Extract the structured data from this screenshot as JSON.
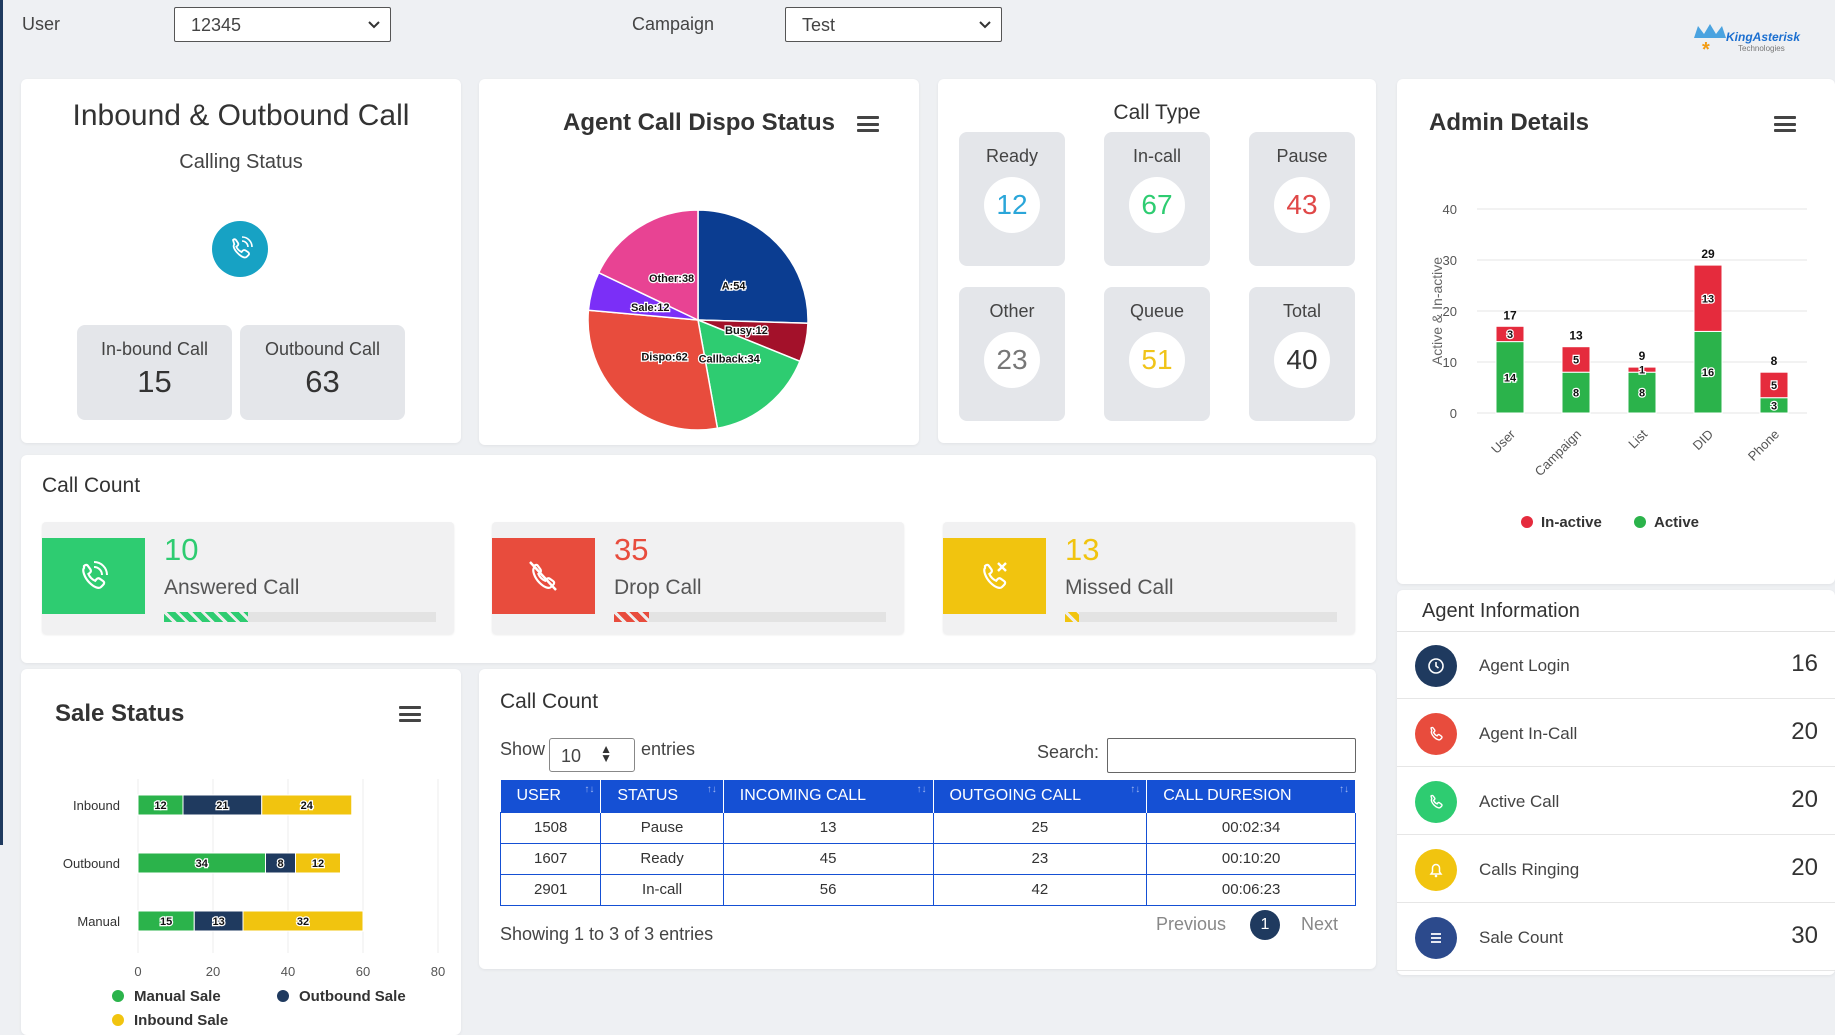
{
  "filters": {
    "user_label": "User",
    "user_value": "12345",
    "campaign_label": "Campaign",
    "campaign_value": "Test"
  },
  "logo": {
    "text": "KingAsterisk",
    "sub": "Technologies"
  },
  "calls": {
    "title": "Inbound & Outbound Call",
    "subtitle": "Calling Status",
    "inbound_label": "In-bound Call",
    "inbound_value": "15",
    "outbound_label": "Outbound Call",
    "outbound_value": "63"
  },
  "dispo_chart": {
    "title": "Agent Call Dispo Status"
  },
  "call_type": {
    "title": "Call Type",
    "items": [
      {
        "label": "Ready",
        "value": "12",
        "color": "#2aa6d9"
      },
      {
        "label": "In-call",
        "value": "67",
        "color": "#2ecc71"
      },
      {
        "label": "Pause",
        "value": "43",
        "color": "#e04848"
      },
      {
        "label": "Other",
        "value": "23",
        "color": "#777777"
      },
      {
        "label": "Queue",
        "value": "51",
        "color": "#f0c419"
      },
      {
        "label": "Total",
        "value": "40",
        "color": "#333333"
      }
    ]
  },
  "admin": {
    "title": "Admin Details"
  },
  "call_count": {
    "title": "Call Count",
    "items": [
      {
        "value": "10",
        "label": "Answered Call",
        "color": "#2ecc71",
        "progress": 0.31
      },
      {
        "value": "35",
        "label": "Drop Call",
        "color": "#e84c3d",
        "progress": 0.13
      },
      {
        "value": "13",
        "label": "Missed Call",
        "color": "#f1c40f",
        "progress": 0.05
      }
    ]
  },
  "sale_chart": {
    "title": "Sale Status"
  },
  "table": {
    "title": "Call Count",
    "show_label": "Show",
    "entries_label": "entries",
    "page_size": "10",
    "search_label": "Search:",
    "columns": [
      "USER",
      "STATUS",
      "INCOMING CALL",
      "OUTGOING CALL",
      "CALL DURESION"
    ],
    "rows": [
      [
        "1508",
        "Pause",
        "13",
        "25",
        "00:02:34"
      ],
      [
        "1607",
        "Ready",
        "45",
        "23",
        "00:10:20"
      ],
      [
        "2901",
        "In-call",
        "56",
        "42",
        "00:06:23"
      ]
    ],
    "info": "Showing 1 to 3 of 3 entries",
    "prev": "Previous",
    "page": "1",
    "next": "Next"
  },
  "agent_info": {
    "title": "Agent Information",
    "items": [
      {
        "label": "Agent Login",
        "value": "16",
        "color": "#1f3a5f",
        "icon": "clock-icon"
      },
      {
        "label": "Agent In-Call",
        "value": "20",
        "color": "#e84c3d",
        "icon": "phone-icon"
      },
      {
        "label": "Active Call",
        "value": "20",
        "color": "#2ecc71",
        "icon": "phone-icon"
      },
      {
        "label": "Calls Ringing",
        "value": "20",
        "color": "#f1c40f",
        "icon": "bell-icon"
      },
      {
        "label": "Sale Count",
        "value": "30",
        "color": "#2c4a8c",
        "icon": "list-icon"
      }
    ]
  },
  "chart_data": [
    {
      "type": "pie",
      "title": "Agent Call Dispo Status",
      "slices": [
        {
          "label": "A:54",
          "value": 54,
          "color": "#0b3d91"
        },
        {
          "label": "Busy:12",
          "value": 12,
          "color": "#a3112a"
        },
        {
          "label": "Callback:34",
          "value": 34,
          "color": "#2ecc71"
        },
        {
          "label": "Dispo:62",
          "value": 62,
          "color": "#e84c3d"
        },
        {
          "label": "Sale:12",
          "value": 12,
          "color": "#7b2ff7"
        },
        {
          "label": "Other:38",
          "value": 38,
          "color": "#e84393"
        }
      ]
    },
    {
      "type": "bar",
      "title": "Admin Details",
      "ylabel": "Active & In-active",
      "ylim": [
        0,
        40
      ],
      "yticks": [
        0,
        10,
        20,
        30,
        40
      ],
      "categories": [
        "User",
        "Campaign",
        "List",
        "DID",
        "Phone"
      ],
      "totals": [
        17,
        13,
        9,
        29,
        8
      ],
      "series": [
        {
          "name": "Active",
          "values": [
            14,
            8,
            8,
            16,
            3
          ],
          "color": "#2bb34b"
        },
        {
          "name": "In-active",
          "values": [
            3,
            5,
            1,
            13,
            5
          ],
          "color": "#e52b3d"
        }
      ],
      "stacked": true,
      "legend": "bottom"
    },
    {
      "type": "bar",
      "orientation": "horizontal",
      "title": "Sale Status",
      "stacked": true,
      "categories": [
        "Inbound",
        "Outbound",
        "Manual"
      ],
      "xlim": [
        0,
        80
      ],
      "xticks": [
        0,
        20,
        40,
        60,
        80
      ],
      "series": [
        {
          "name": "Manual Sale",
          "values": [
            12,
            34,
            15
          ],
          "color": "#2bb34b"
        },
        {
          "name": "Outbound Sale",
          "values": [
            21,
            8,
            13
          ],
          "color": "#1f3a5f"
        },
        {
          "name": "Inbound Sale",
          "values": [
            24,
            12,
            32
          ],
          "color": "#f1c40f"
        }
      ],
      "legend": "bottom"
    }
  ]
}
